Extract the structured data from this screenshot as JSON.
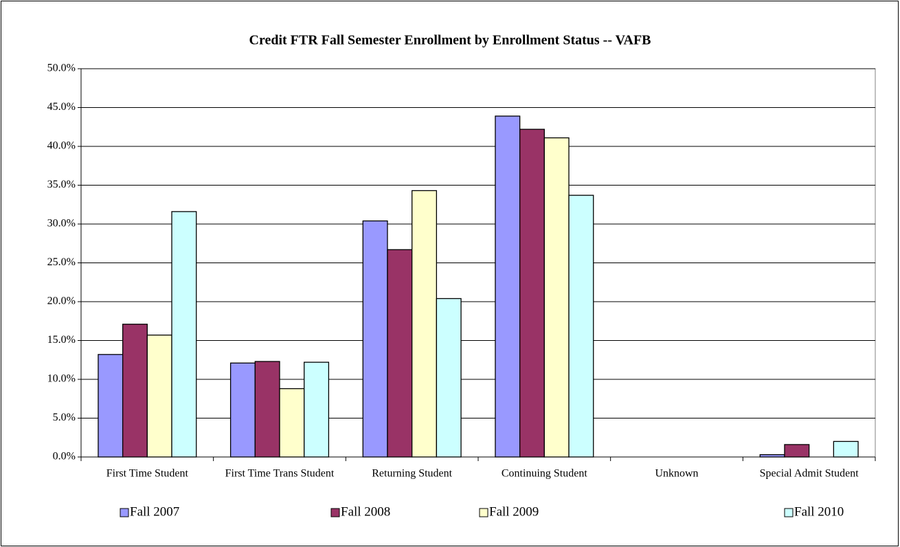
{
  "chart_data": {
    "type": "bar",
    "title": "Credit FTR Fall Semester Enrollment by Enrollment Status -- VAFB",
    "categories": [
      "First Time Student",
      "First Time Trans Student",
      "Returning Student",
      "Continuing Student",
      "Unknown",
      "Special Admit Student"
    ],
    "series": [
      {
        "name": "Fall 2007",
        "color": "#9999ff",
        "values": [
          13.2,
          12.1,
          30.4,
          43.9,
          0,
          0.3
        ]
      },
      {
        "name": "Fall 2008",
        "color": "#993366",
        "values": [
          17.1,
          12.3,
          26.7,
          42.2,
          0,
          1.6
        ]
      },
      {
        "name": "Fall 2009",
        "color": "#ffffcc",
        "values": [
          15.7,
          8.8,
          34.3,
          41.1,
          0,
          0
        ]
      },
      {
        "name": "Fall 2010",
        "color": "#ccffff",
        "values": [
          31.6,
          12.2,
          20.4,
          33.7,
          0,
          2.0
        ]
      }
    ],
    "ylim": [
      0,
      50
    ],
    "yticks": [
      {
        "value": 0,
        "label": "0.0%"
      },
      {
        "value": 5,
        "label": "5.0%"
      },
      {
        "value": 10,
        "label": "10.0%"
      },
      {
        "value": 15,
        "label": "15.0%"
      },
      {
        "value": 20,
        "label": "20.0%"
      },
      {
        "value": 25,
        "label": "25.0%"
      },
      {
        "value": 30,
        "label": "30.0%"
      },
      {
        "value": 35,
        "label": "35.0%"
      },
      {
        "value": 40,
        "label": "40.0%"
      },
      {
        "value": 45,
        "label": "45.0%"
      },
      {
        "value": 50,
        "label": "50.0%"
      }
    ],
    "grid": true,
    "legend": "bottom"
  }
}
